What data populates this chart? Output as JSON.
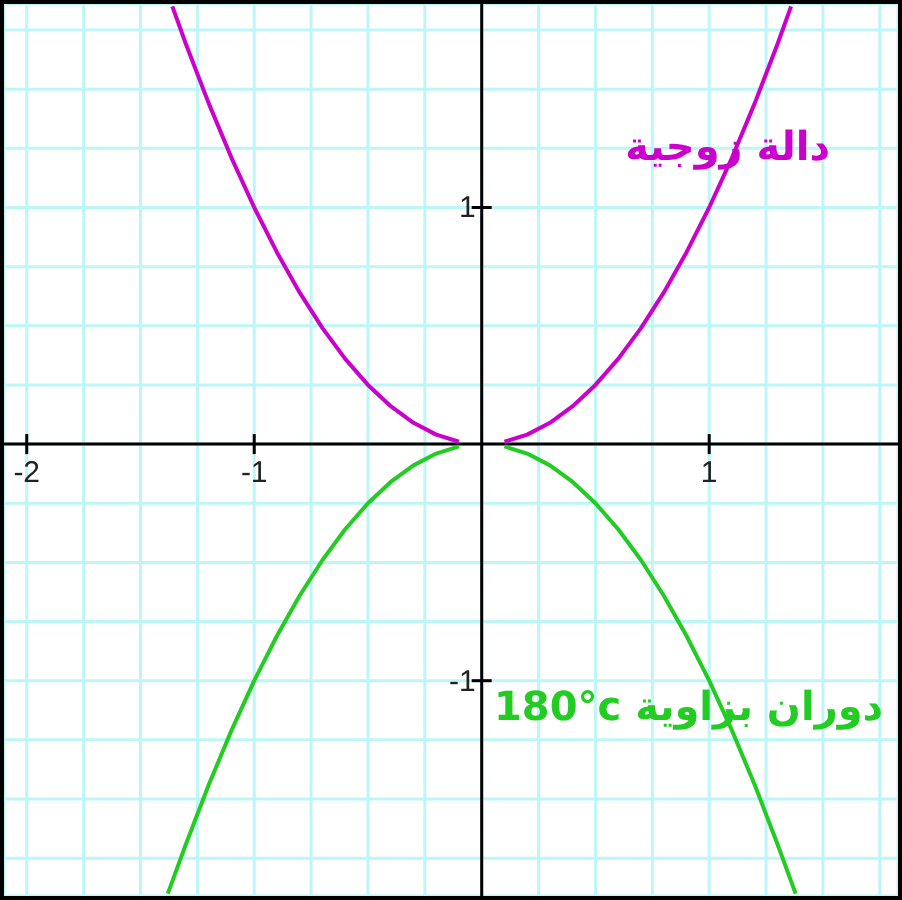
{
  "chart_data": {
    "type": "line",
    "series": [
      {
        "name": "دالة زوجية",
        "color": "#cc00cc",
        "x": [
          -1.36,
          -1.3,
          -1.2,
          -1.1,
          -1.0,
          -0.9,
          -0.8,
          -0.7,
          -0.6,
          -0.5,
          -0.4,
          -0.3,
          -0.2,
          -0.1,
          0,
          0.1,
          0.2,
          0.3,
          0.4,
          0.5,
          0.6,
          0.7,
          0.8,
          0.9,
          1.0,
          1.1,
          1.2,
          1.3,
          1.36
        ],
        "values": [
          1.85,
          1.69,
          1.44,
          1.21,
          1.0,
          0.81,
          0.64,
          0.49,
          0.36,
          0.25,
          0.16,
          0.09,
          0.04,
          0.01,
          null,
          0.01,
          0.04,
          0.09,
          0.16,
          0.25,
          0.36,
          0.49,
          0.64,
          0.81,
          1.0,
          1.21,
          1.44,
          1.69,
          1.85
        ]
      },
      {
        "name": "دوران بزاوية 180°c",
        "color": "#22cc22",
        "x": [
          -1.38,
          -1.3,
          -1.2,
          -1.1,
          -1.0,
          -0.9,
          -0.8,
          -0.7,
          -0.6,
          -0.5,
          -0.4,
          -0.3,
          -0.2,
          -0.1,
          0,
          0.1,
          0.2,
          0.3,
          0.4,
          0.5,
          0.6,
          0.7,
          0.8,
          0.9,
          1.0,
          1.1,
          1.2,
          1.3,
          1.38
        ],
        "values": [
          -1.9,
          -1.69,
          -1.44,
          -1.21,
          -1.0,
          -0.81,
          -0.64,
          -0.49,
          -0.36,
          -0.25,
          -0.16,
          -0.09,
          -0.04,
          -0.01,
          null,
          -0.01,
          -0.04,
          -0.09,
          -0.16,
          -0.25,
          -0.36,
          -0.49,
          -0.64,
          -0.81,
          -1.0,
          -1.21,
          -1.44,
          -1.69,
          -1.9
        ]
      }
    ],
    "xlim": [
      -2.1,
      1.83
    ],
    "ylim": [
      -1.91,
      1.86
    ],
    "xticks": [
      -2,
      {
        "value": -1.75,
        "label": null
      },
      {
        "value": -1.5,
        "label": null
      },
      {
        "value": -1.25,
        "label": null
      },
      -1,
      {
        "value": -0.75,
        "label": null
      },
      {
        "value": -0.5,
        "label": null
      },
      {
        "value": -0.25,
        "label": null
      },
      {
        "value": 0,
        "label": null
      },
      {
        "value": 0.25,
        "label": null
      },
      {
        "value": 0.5,
        "label": null
      },
      {
        "value": 0.75,
        "label": null
      },
      1,
      {
        "value": 1.25,
        "label": null
      },
      {
        "value": 1.5,
        "label": null
      },
      {
        "value": 1.75,
        "label": null
      }
    ],
    "yticks": [
      {
        "value": -1.75,
        "label": null
      },
      {
        "value": -1.5,
        "label": null
      },
      {
        "value": -1.25,
        "label": null
      },
      -1,
      {
        "value": -0.75,
        "label": null
      },
      {
        "value": -0.5,
        "label": null
      },
      {
        "value": -0.25,
        "label": null
      },
      {
        "value": 0,
        "label": null
      },
      {
        "value": 0.25,
        "label": null
      },
      {
        "value": 0.5,
        "label": null
      },
      {
        "value": 0.75,
        "label": null
      },
      1,
      {
        "value": 1.25,
        "label": null
      },
      {
        "value": 1.5,
        "label": null
      },
      {
        "value": 1.75,
        "label": null
      }
    ],
    "grid": true,
    "marker": "none",
    "line_style": "solid"
  }
}
